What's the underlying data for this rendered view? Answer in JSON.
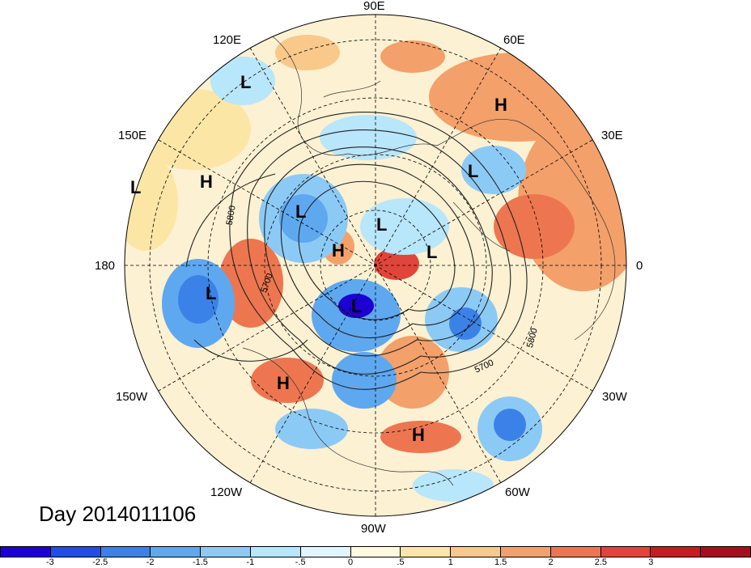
{
  "longitude_labels": {
    "lon_90e": "90E",
    "lon_120e": "120E",
    "lon_60e": "60E",
    "lon_150e": "150E",
    "lon_30e": "30E",
    "lon_180": "180",
    "lon_0": "0",
    "lon_150w": "150W",
    "lon_30w": "30W",
    "lon_120w": "120W",
    "lon_60w": "60W",
    "lon_90w": "90W"
  },
  "contour_labels": [
    "5800",
    "5700",
    "5700",
    "5800"
  ],
  "pressure_systems": {
    "l1": "L",
    "l2": "L",
    "l3": "L",
    "l4": "L",
    "l5": "L",
    "l6": "L",
    "l7": "L",
    "l8": "L",
    "h1": "H",
    "h2": "H",
    "h3": "H",
    "h4": "H",
    "h5": "H"
  },
  "date_label": "Day 2014011106",
  "colorbar": {
    "colors": [
      "#1d00d2",
      "#1f4fe0",
      "#3b82e8",
      "#5ea8f0",
      "#8ccaf6",
      "#b8e6fa",
      "#e1f5fc",
      "#fff9df",
      "#fbe6a6",
      "#f8c98a",
      "#f3a06a",
      "#ed7650",
      "#e0453a",
      "#c11d22",
      "#a30f1e"
    ],
    "ticks": [
      "-3",
      "-2.5",
      "-2",
      "-1.5",
      "-1",
      "-.5",
      "0",
      ".5",
      "1",
      "1.5",
      "2",
      "2.5",
      "3"
    ]
  }
}
